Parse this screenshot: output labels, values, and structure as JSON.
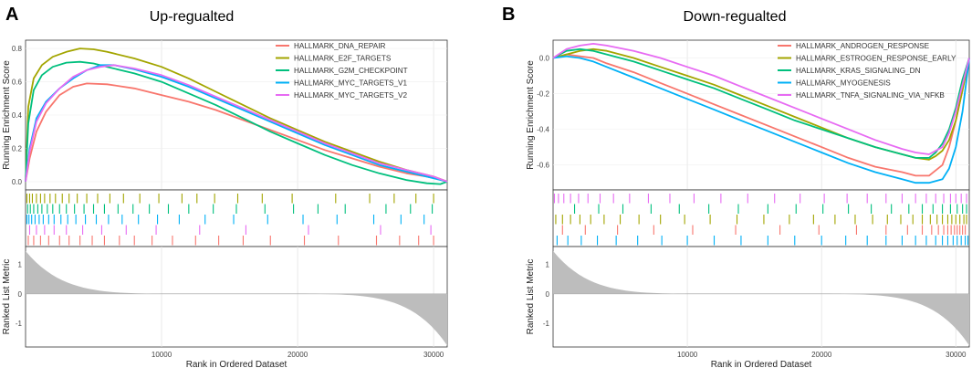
{
  "figure": {
    "panels": [
      {
        "letter": "A",
        "title": "Up-regualted",
        "ylabel_top": "Running Enrichment Score",
        "ylabel_bottom": "Ranked List Metric",
        "xlabel": "Rank in Ordered Dataset",
        "x_ticks": [
          "10000",
          "20000",
          "30000"
        ],
        "y_ticks_top": [
          "0.0",
          "0.2",
          "0.4",
          "0.6",
          "0.8"
        ],
        "y_ticks_bottom": [
          "1",
          "0",
          "-1"
        ]
      },
      {
        "letter": "B",
        "title": "Down-regualted",
        "ylabel_top": "Running Enrichment Score",
        "ylabel_bottom": "Ranked List Metric",
        "xlabel": "Rank in Ordered Dataset",
        "x_ticks": [
          "10000",
          "20000",
          "30000"
        ],
        "y_ticks_top": [
          "0.0",
          "-0.2",
          "-0.4",
          "-0.6"
        ],
        "y_ticks_bottom": [
          "1",
          "0",
          "-1"
        ]
      }
    ]
  },
  "chart_data": [
    {
      "type": "line",
      "title": "Up-regualted",
      "xlabel": "Rank in Ordered Dataset",
      "ylabel": "Running Enrichment Score",
      "xlim": [
        0,
        31000
      ],
      "ylim": [
        -0.05,
        0.85
      ],
      "metric_ylim": [
        -1.8,
        1.6
      ],
      "legend_position": "top-right",
      "series": [
        {
          "name": "HALLMARK_DNA_REPAIR",
          "color": "#F8766D",
          "x": [
            0,
            300,
            800,
            1500,
            2500,
            3500,
            4500,
            6000,
            8000,
            10000,
            12000,
            14000,
            16000,
            18000,
            20000,
            22000,
            24000,
            26000,
            28000,
            29500,
            30500,
            31000
          ],
          "y": [
            0.0,
            0.14,
            0.3,
            0.42,
            0.52,
            0.57,
            0.59,
            0.585,
            0.56,
            0.52,
            0.48,
            0.43,
            0.37,
            0.31,
            0.25,
            0.19,
            0.14,
            0.09,
            0.05,
            0.03,
            0.015,
            0.0
          ],
          "ticks": [
            200,
            600,
            1100,
            1700,
            2500,
            3200,
            4000,
            4900,
            5800,
            6900,
            8000,
            9300,
            10800,
            12500,
            14200,
            16000,
            18000,
            20500,
            23000,
            25800,
            27500,
            28900,
            30000
          ]
        },
        {
          "name": "HALLMARK_E2F_TARGETS",
          "color": "#A3A500",
          "x": [
            0,
            200,
            600,
            1200,
            2000,
            3000,
            4000,
            5000,
            6000,
            8000,
            10000,
            12000,
            14000,
            16000,
            18000,
            20000,
            22000,
            24000,
            26000,
            28000,
            30000,
            31000
          ],
          "y": [
            0.0,
            0.45,
            0.62,
            0.7,
            0.75,
            0.78,
            0.8,
            0.795,
            0.78,
            0.74,
            0.69,
            0.62,
            0.54,
            0.46,
            0.38,
            0.31,
            0.24,
            0.18,
            0.12,
            0.07,
            0.03,
            0.0
          ],
          "ticks": [
            100,
            300,
            500,
            800,
            1100,
            1400,
            1800,
            2200,
            2700,
            3200,
            3800,
            4500,
            5300,
            6200,
            7200,
            8400,
            9800,
            11500,
            12600,
            13900,
            15600,
            17400,
            19600,
            22800,
            25300,
            27100,
            28700,
            30000
          ]
        },
        {
          "name": "HALLMARK_G2M_CHECKPOINT",
          "color": "#00BF7D",
          "x": [
            0,
            200,
            600,
            1200,
            2000,
            3000,
            4000,
            5000,
            6000,
            8000,
            10000,
            12000,
            14000,
            16000,
            18000,
            20000,
            22000,
            24000,
            26000,
            28000,
            29500,
            30500,
            31000
          ],
          "y": [
            0.0,
            0.35,
            0.55,
            0.64,
            0.69,
            0.715,
            0.72,
            0.71,
            0.69,
            0.65,
            0.6,
            0.53,
            0.46,
            0.38,
            0.3,
            0.23,
            0.16,
            0.1,
            0.05,
            0.01,
            -0.01,
            -0.015,
            0.0
          ],
          "ticks": [
            150,
            350,
            600,
            900,
            1200,
            1600,
            2000,
            2500,
            3000,
            3600,
            4300,
            5000,
            5800,
            6800,
            7900,
            9100,
            10500,
            12000,
            13800,
            15500,
            17600,
            19700,
            21500,
            23500,
            26500,
            28300,
            29900
          ]
        },
        {
          "name": "HALLMARK_MYC_TARGETS_V1",
          "color": "#00B0F6",
          "x": [
            0,
            300,
            800,
            1500,
            2500,
            3500,
            4500,
            5500,
            6500,
            8000,
            10000,
            12000,
            14000,
            16000,
            18000,
            20000,
            22000,
            24000,
            26000,
            28000,
            30000,
            31000
          ],
          "y": [
            0.0,
            0.2,
            0.38,
            0.48,
            0.56,
            0.62,
            0.67,
            0.7,
            0.7,
            0.675,
            0.63,
            0.57,
            0.5,
            0.43,
            0.36,
            0.29,
            0.22,
            0.16,
            0.1,
            0.06,
            0.02,
            0.0
          ],
          "ticks": [
            100,
            250,
            450,
            700,
            1000,
            1300,
            1700,
            2100,
            2600,
            3100,
            3700,
            4400,
            5200,
            6100,
            7100,
            8300,
            9700,
            11300,
            13200,
            15300,
            17800,
            20400,
            22900,
            25600,
            27600,
            29300
          ]
        },
        {
          "name": "HALLMARK_MYC_TARGETS_V2",
          "color": "#E76BF3",
          "x": [
            0,
            300,
            800,
            1500,
            2500,
            3500,
            4500,
            5500,
            6500,
            8000,
            10000,
            12000,
            14000,
            16000,
            18000,
            20000,
            22000,
            24000,
            26000,
            28000,
            30000,
            31000
          ],
          "y": [
            0.0,
            0.18,
            0.36,
            0.47,
            0.56,
            0.63,
            0.67,
            0.69,
            0.7,
            0.68,
            0.64,
            0.58,
            0.51,
            0.44,
            0.37,
            0.3,
            0.23,
            0.17,
            0.11,
            0.07,
            0.03,
            0.0
          ],
          "ticks": [
            300,
            800,
            1400,
            2100,
            3000,
            4200,
            5600,
            7400,
            9600,
            12800,
            16200,
            20800,
            26100,
            29800
          ]
        }
      ]
    },
    {
      "type": "line",
      "title": "Down-regualted",
      "xlabel": "Rank in Ordered Dataset",
      "ylabel": "Running Enrichment Score",
      "xlim": [
        0,
        31000
      ],
      "ylim": [
        -0.74,
        0.1
      ],
      "metric_ylim": [
        -1.8,
        1.6
      ],
      "legend_position": "top-right",
      "series": [
        {
          "name": "HALLMARK_ANDROGEN_RESPONSE",
          "color": "#F8766D",
          "x": [
            0,
            1000,
            2000,
            3000,
            4000,
            6000,
            8000,
            10000,
            12000,
            14000,
            16000,
            18000,
            20000,
            22000,
            24000,
            26000,
            27000,
            28000,
            29000,
            29500,
            30000,
            30500,
            31000
          ],
          "y": [
            0.0,
            0.02,
            0.01,
            0.0,
            -0.03,
            -0.08,
            -0.14,
            -0.2,
            -0.26,
            -0.32,
            -0.38,
            -0.44,
            -0.5,
            -0.56,
            -0.61,
            -0.64,
            -0.66,
            -0.66,
            -0.6,
            -0.5,
            -0.35,
            -0.18,
            0.0
          ],
          "ticks": [
            700,
            2400,
            4800,
            7500,
            10400,
            13600,
            16900,
            19800,
            22600,
            24800,
            26400,
            27500,
            28200,
            28700,
            29100,
            29400,
            29650,
            29900,
            30100,
            30300,
            30500,
            30700
          ]
        },
        {
          "name": "HALLMARK_ESTROGEN_RESPONSE_EARLY",
          "color": "#A3A500",
          "x": [
            0,
            1000,
            2000,
            3000,
            4000,
            6000,
            8000,
            10000,
            12000,
            14000,
            16000,
            18000,
            20000,
            22000,
            24000,
            26000,
            27000,
            28000,
            28500,
            29000,
            29500,
            30000,
            30500,
            31000
          ],
          "y": [
            0.0,
            0.02,
            0.04,
            0.05,
            0.04,
            0.0,
            -0.05,
            -0.1,
            -0.15,
            -0.21,
            -0.27,
            -0.33,
            -0.39,
            -0.45,
            -0.5,
            -0.54,
            -0.56,
            -0.57,
            -0.55,
            -0.52,
            -0.46,
            -0.35,
            -0.18,
            0.0
          ],
          "ticks": [
            200,
            700,
            1300,
            2000,
            2800,
            3800,
            5000,
            6400,
            8000,
            9800,
            11700,
            13700,
            15700,
            17600,
            19400,
            21000,
            22500,
            23800,
            24900,
            25900,
            26800,
            27500,
            28100,
            28600,
            29000,
            29400,
            29700,
            30000,
            30300,
            30600,
            30800
          ]
        },
        {
          "name": "HALLMARK_KRAS_SIGNALING_DN",
          "color": "#00BF7D",
          "x": [
            0,
            1000,
            2000,
            3000,
            4000,
            6000,
            8000,
            10000,
            12000,
            14000,
            16000,
            18000,
            20000,
            22000,
            24000,
            26000,
            27000,
            28000,
            28500,
            29000,
            29500,
            30000,
            30500,
            31000
          ],
          "y": [
            0.0,
            0.04,
            0.05,
            0.04,
            0.02,
            -0.02,
            -0.07,
            -0.12,
            -0.17,
            -0.23,
            -0.29,
            -0.35,
            -0.4,
            -0.45,
            -0.5,
            -0.54,
            -0.56,
            -0.56,
            -0.53,
            -0.48,
            -0.4,
            -0.28,
            -0.12,
            0.0
          ],
          "ticks": [
            1600,
            3400,
            5200,
            7300,
            9400,
            11600,
            13800,
            16000,
            18100,
            20100,
            22000,
            23700,
            25200,
            26500,
            27500,
            28300,
            29000,
            29600,
            30100,
            30500,
            30800
          ]
        },
        {
          "name": "HALLMARK_MYOGENESIS",
          "color": "#00B0F6",
          "x": [
            0,
            1000,
            2000,
            3000,
            4000,
            6000,
            8000,
            10000,
            12000,
            14000,
            16000,
            18000,
            20000,
            22000,
            24000,
            26000,
            27000,
            28000,
            29000,
            29500,
            30000,
            30500,
            31000
          ],
          "y": [
            0.0,
            0.01,
            0.0,
            -0.02,
            -0.05,
            -0.11,
            -0.17,
            -0.23,
            -0.29,
            -0.35,
            -0.41,
            -0.47,
            -0.53,
            -0.59,
            -0.64,
            -0.68,
            -0.7,
            -0.7,
            -0.68,
            -0.62,
            -0.5,
            -0.3,
            0.0
          ],
          "ticks": [
            300,
            1100,
            2100,
            3300,
            4700,
            6300,
            8100,
            10000,
            12000,
            14000,
            16000,
            18000,
            20000,
            21800,
            23400,
            24800,
            26000,
            27000,
            27800,
            28500,
            29000,
            29400,
            29800,
            30100,
            30400,
            30700,
            30900
          ]
        },
        {
          "name": "HALLMARK_TNFA_SIGNALING_VIA_NFKB",
          "color": "#E76BF3",
          "x": [
            0,
            1000,
            2000,
            3000,
            4000,
            6000,
            8000,
            10000,
            12000,
            14000,
            16000,
            18000,
            20000,
            22000,
            24000,
            26000,
            27000,
            28000,
            29000,
            29500,
            30000,
            30500,
            31000
          ],
          "y": [
            0.0,
            0.05,
            0.07,
            0.08,
            0.07,
            0.04,
            0.0,
            -0.05,
            -0.1,
            -0.16,
            -0.22,
            -0.28,
            -0.34,
            -0.4,
            -0.46,
            -0.51,
            -0.53,
            -0.54,
            -0.5,
            -0.42,
            -0.3,
            -0.15,
            0.0
          ],
          "ticks": [
            100,
            400,
            800,
            1300,
            1900,
            2600,
            3500,
            4500,
            5700,
            7100,
            8700,
            10500,
            12500,
            14500,
            16500,
            18400,
            20200,
            21900,
            23400,
            24800,
            26000,
            27000,
            27800,
            28500,
            29100,
            29600,
            30000,
            30400,
            30800
          ]
        }
      ]
    }
  ]
}
